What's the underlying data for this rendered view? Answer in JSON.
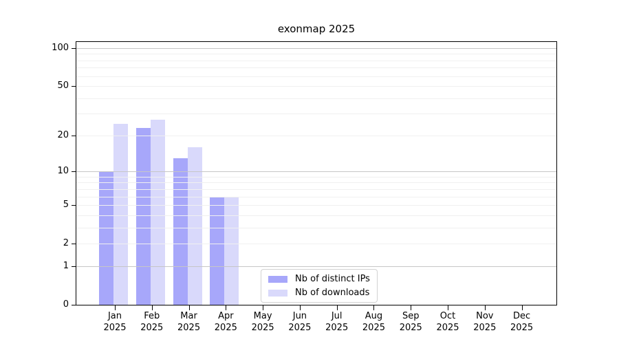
{
  "title": "exonmap 2025",
  "colors": {
    "distinct_ips_bar": "#a7a7fa",
    "downloads_bar": "#d9d9fb",
    "major_gridline": "#c6c6c6",
    "minor_gridline": "#f0f0f0",
    "axis": "#000000",
    "legend_border": "#d2d2d2",
    "background": "#ffffff"
  },
  "chart_data": {
    "type": "bar",
    "title": "exonmap 2025",
    "xlabel": "",
    "ylabel": "",
    "year_label": "2025",
    "categories": [
      "Jan",
      "Feb",
      "Mar",
      "Apr",
      "May",
      "Jun",
      "Jul",
      "Aug",
      "Sep",
      "Oct",
      "Nov",
      "Dec"
    ],
    "series": [
      {
        "name": "Nb of distinct IPs",
        "color": "#a7a7fa",
        "values": [
          10,
          23,
          13,
          6,
          0,
          0,
          0,
          0,
          0,
          0,
          0,
          0
        ]
      },
      {
        "name": "Nb of downloads",
        "color": "#d9d9fb",
        "values": [
          25,
          27,
          16,
          6,
          0,
          0,
          0,
          0,
          0,
          0,
          0,
          0
        ]
      }
    ],
    "y_axis": {
      "scale": "log10(1+v)",
      "tick_values": [
        100,
        50,
        20,
        10,
        5,
        2,
        1,
        0
      ],
      "tick_labels": [
        "100",
        "50",
        "20",
        "10",
        "5",
        "2",
        "1",
        "0"
      ],
      "major_gridlines": [
        1,
        10,
        100
      ],
      "minor_gridlines": [
        2,
        3,
        4,
        5,
        6,
        7,
        8,
        9,
        20,
        30,
        40,
        50,
        60,
        70,
        80,
        90
      ],
      "ylim": [
        0,
        112
      ]
    },
    "legend": {
      "entries": [
        "Nb of distinct IPs",
        "Nb of downloads"
      ],
      "position": "lower center"
    },
    "grid": "horizontal only"
  }
}
